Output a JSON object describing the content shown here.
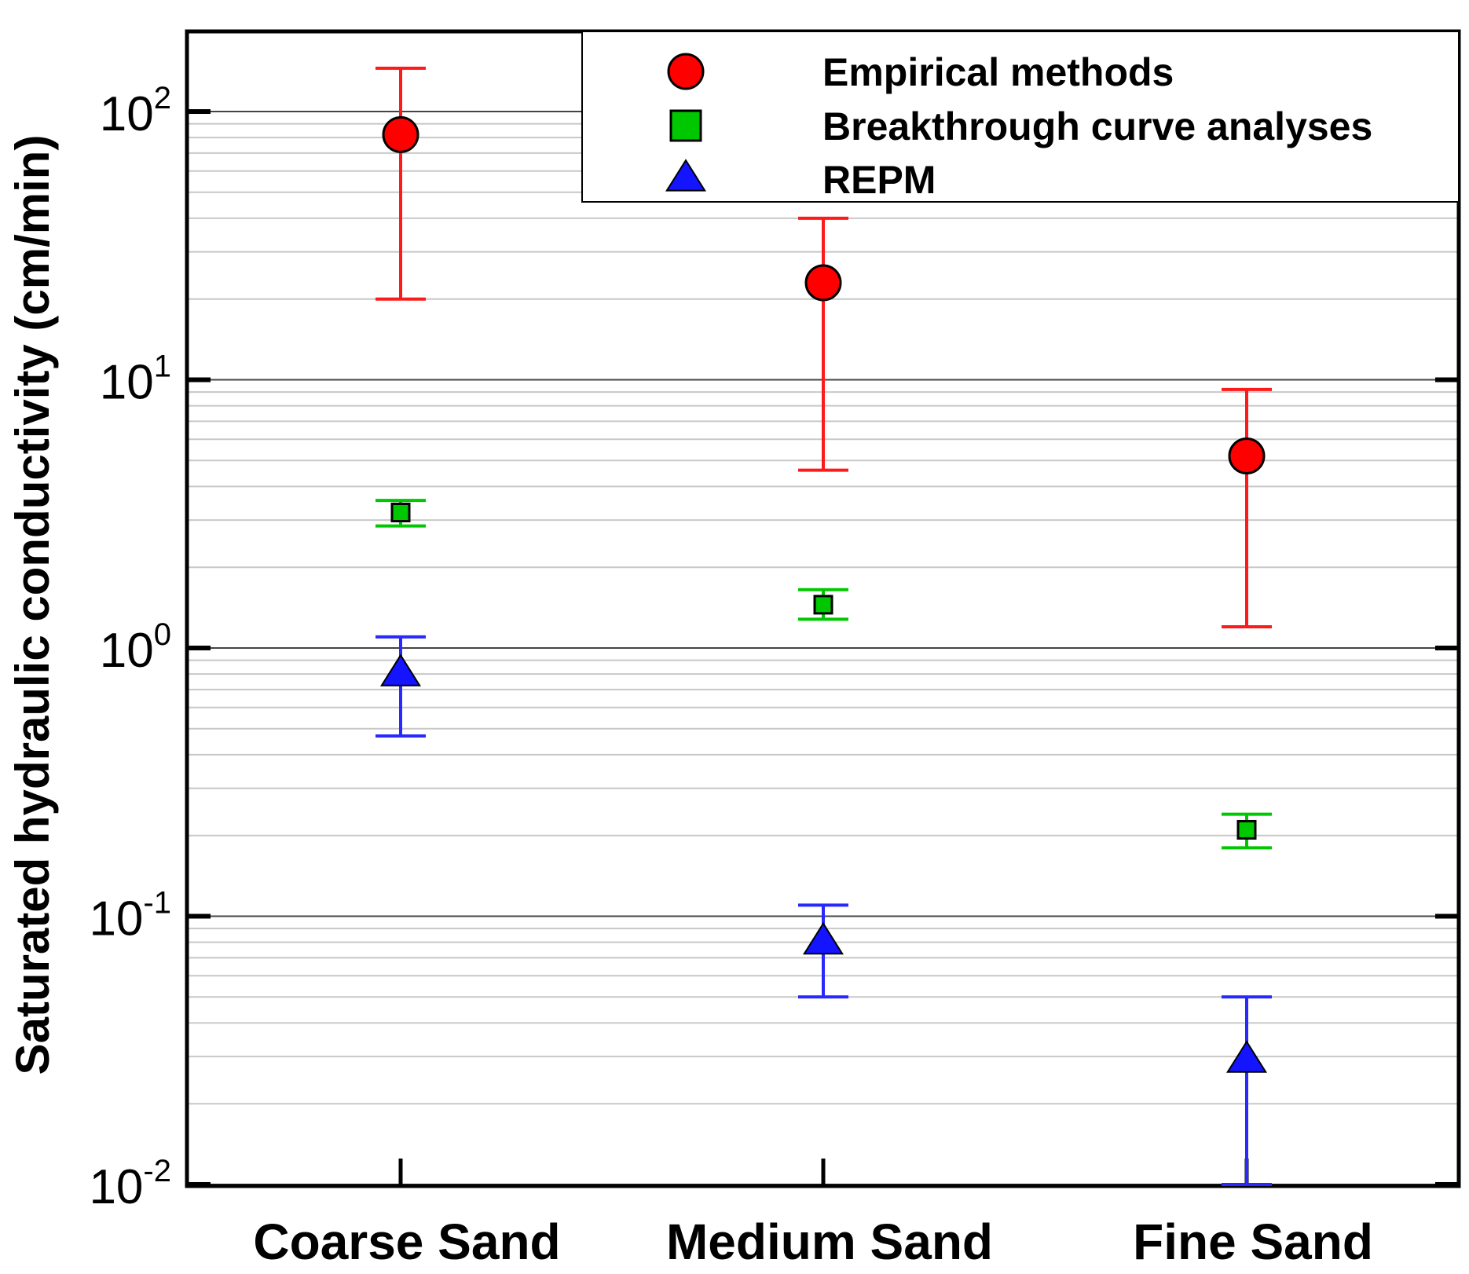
{
  "chart_data": {
    "type": "scatter",
    "title": "",
    "xlabel": "",
    "ylabel": "Saturated hydraulic conductivity (cm/min)",
    "yscale": "log",
    "ylim": [
      0.01,
      300
    ],
    "grid": "horizontal minor and major",
    "legend_position": "top-right",
    "categories": [
      "Coarse Sand",
      "Medium Sand",
      "Fine Sand"
    ],
    "y_ticks": [
      {
        "value": 0.01,
        "base": "10",
        "exp": "-2"
      },
      {
        "value": 0.1,
        "base": "10",
        "exp": "-1"
      },
      {
        "value": 1,
        "base": "10",
        "exp": "0"
      },
      {
        "value": 10,
        "base": "10",
        "exp": "1"
      },
      {
        "value": 100,
        "base": "10",
        "exp": "2"
      }
    ],
    "series": [
      {
        "name": "Empirical methods",
        "marker": "circle",
        "color": "#ff0000",
        "errbar_color": "#ff1a1a",
        "values": [
          82,
          23,
          5.2
        ],
        "err_low": [
          20,
          4.6,
          1.2
        ],
        "err_high": [
          145,
          40,
          9.2
        ]
      },
      {
        "name": "Breakthrough curve analyses",
        "marker": "square",
        "color": "#00c800",
        "errbar_color": "#00c800",
        "values": [
          3.2,
          1.45,
          0.21
        ],
        "err_low": [
          2.85,
          1.28,
          0.18
        ],
        "err_high": [
          3.55,
          1.65,
          0.24
        ]
      },
      {
        "name": "REPM",
        "marker": "triangle",
        "color": "#1414ff",
        "errbar_color": "#2828ff",
        "values": [
          0.8,
          0.08,
          0.029
        ],
        "err_low": [
          0.47,
          0.05,
          0.01
        ],
        "err_high": [
          1.1,
          0.11,
          0.05
        ]
      }
    ]
  }
}
